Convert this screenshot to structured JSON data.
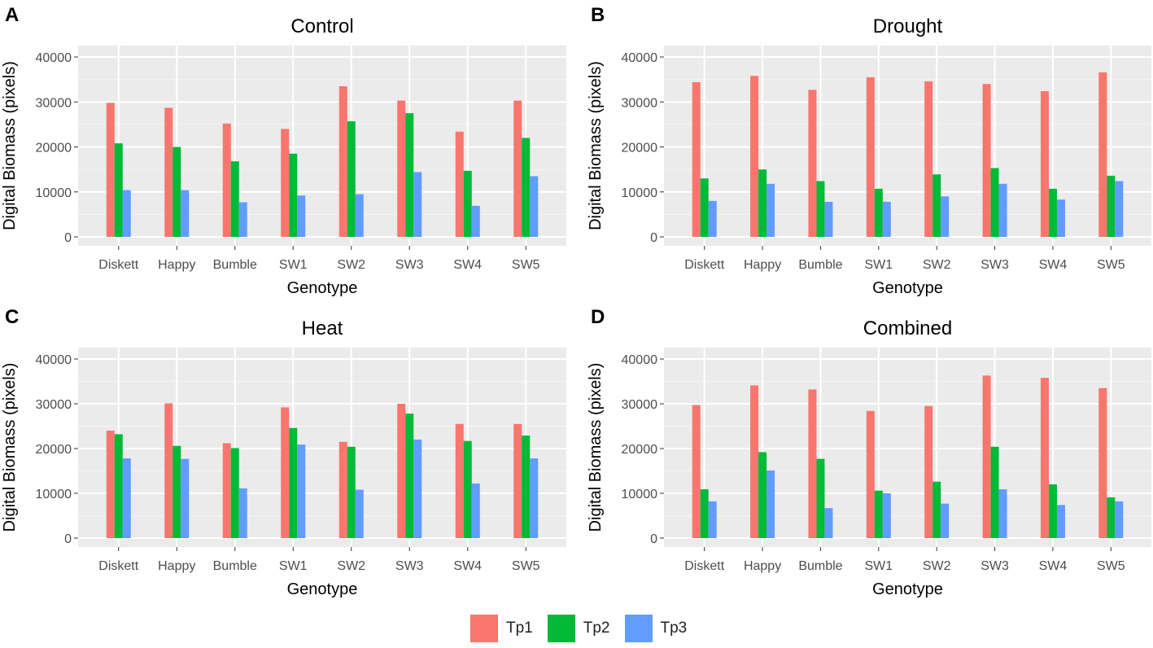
{
  "figure": {
    "series_colors": {
      "Tp1": "#F8766D",
      "Tp2": "#00BA38",
      "Tp3": "#619CFF"
    },
    "panel_bg": "#EBEBEB",
    "grid_color": "#FFFFFF"
  },
  "legend": {
    "items": [
      {
        "label": "Tp1",
        "color": "#F8766D"
      },
      {
        "label": "Tp2",
        "color": "#00BA38"
      },
      {
        "label": "Tp3",
        "color": "#619CFF"
      }
    ]
  },
  "chart_data": [
    {
      "panel_label": "A",
      "type": "bar",
      "title": "Control",
      "xlabel": "Genotype",
      "ylabel": "Digital Biomass (pixels)",
      "ylim": [
        0,
        40000
      ],
      "yticks": [
        "0",
        "10000",
        "20000",
        "30000",
        "40000"
      ],
      "categories": [
        "Diskett",
        "Happy",
        "Bumble",
        "SW1",
        "SW2",
        "SW3",
        "SW4",
        "SW5"
      ],
      "series": [
        {
          "name": "Tp1",
          "values": [
            29800,
            28700,
            25200,
            24000,
            33500,
            30300,
            23400,
            30300
          ]
        },
        {
          "name": "Tp2",
          "values": [
            20800,
            20000,
            16800,
            18500,
            25700,
            27500,
            14700,
            22000
          ]
        },
        {
          "name": "Tp3",
          "values": [
            10400,
            10400,
            7700,
            9200,
            9500,
            14400,
            6900,
            13500
          ]
        }
      ]
    },
    {
      "panel_label": "B",
      "type": "bar",
      "title": "Drought",
      "xlabel": "Genotype",
      "ylabel": "Digital Biomass (pixels)",
      "ylim": [
        0,
        40000
      ],
      "yticks": [
        "0",
        "10000",
        "20000",
        "30000",
        "40000"
      ],
      "categories": [
        "Diskett",
        "Happy",
        "Bumble",
        "SW1",
        "SW2",
        "SW3",
        "SW4",
        "SW5"
      ],
      "series": [
        {
          "name": "Tp1",
          "values": [
            34400,
            35800,
            32700,
            35500,
            34600,
            34000,
            32400,
            36600
          ]
        },
        {
          "name": "Tp2",
          "values": [
            13000,
            15000,
            12400,
            10700,
            13900,
            15300,
            10700,
            13600
          ]
        },
        {
          "name": "Tp3",
          "values": [
            8000,
            11800,
            7800,
            7800,
            9000,
            11800,
            8300,
            12400
          ]
        }
      ]
    },
    {
      "panel_label": "C",
      "type": "bar",
      "title": "Heat",
      "xlabel": "Genotype",
      "ylabel": "Digital Biomass (pixels)",
      "ylim": [
        0,
        40000
      ],
      "yticks": [
        "0",
        "10000",
        "20000",
        "30000",
        "40000"
      ],
      "categories": [
        "Diskett",
        "Happy",
        "Bumble",
        "SW1",
        "SW2",
        "SW3",
        "SW4",
        "SW5"
      ],
      "series": [
        {
          "name": "Tp1",
          "values": [
            24000,
            30100,
            21200,
            29200,
            21500,
            30000,
            25500,
            25500
          ]
        },
        {
          "name": "Tp2",
          "values": [
            23200,
            20600,
            20100,
            24600,
            20400,
            27800,
            21700,
            22900
          ]
        },
        {
          "name": "Tp3",
          "values": [
            17800,
            17700,
            11100,
            20900,
            10800,
            22000,
            12200,
            17800
          ]
        }
      ]
    },
    {
      "panel_label": "D",
      "type": "bar",
      "title": "Combined",
      "xlabel": "Genotype",
      "ylabel": "Digital Biomass (pixels)",
      "ylim": [
        0,
        40000
      ],
      "yticks": [
        "0",
        "10000",
        "20000",
        "30000",
        "40000"
      ],
      "categories": [
        "Diskett",
        "Happy",
        "Bumble",
        "SW1",
        "SW2",
        "SW3",
        "SW4",
        "SW5"
      ],
      "series": [
        {
          "name": "Tp1",
          "values": [
            29700,
            34100,
            33200,
            28400,
            29500,
            36300,
            35800,
            33500
          ]
        },
        {
          "name": "Tp2",
          "values": [
            10900,
            19200,
            17700,
            10600,
            12600,
            20400,
            12000,
            9100
          ]
        },
        {
          "name": "Tp3",
          "values": [
            8200,
            15100,
            6700,
            10000,
            7700,
            10900,
            7400,
            8200
          ]
        }
      ]
    }
  ]
}
